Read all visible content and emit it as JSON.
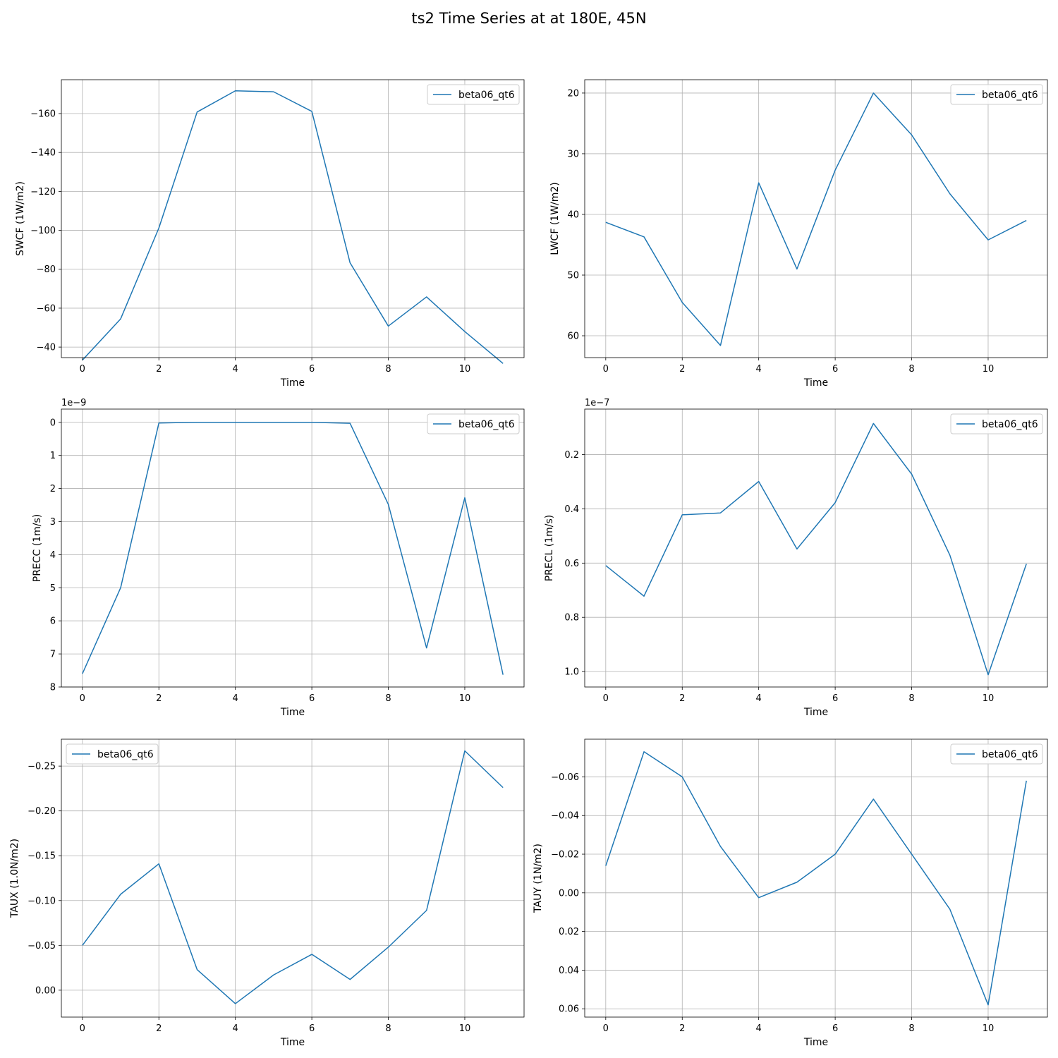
{
  "figure": {
    "title": "ts2 Time Series at at 180E, 45N"
  },
  "colors": {
    "line": "#1f77b4",
    "grid": "#b0b0b0",
    "axes": "#000000"
  },
  "chart_data": [
    {
      "type": "line",
      "ylabel": "SWCF (1W/m2)",
      "xlabel": "Time",
      "y_inverted": true,
      "offset_text": "",
      "legend": "top-right",
      "xlim": [
        -0.55,
        11.55
      ],
      "ylim": [
        -34.6,
        -177.4
      ],
      "xticks": [
        0,
        2,
        4,
        6,
        8,
        10
      ],
      "xtick_labels": [
        "0",
        "2",
        "4",
        "6",
        "8",
        "10"
      ],
      "yticks": [
        -40,
        -60,
        -80,
        -100,
        -120,
        -140,
        -160
      ],
      "ytick_labels": [
        "−40",
        "−60",
        "−80",
        "−100",
        "−120",
        "−140",
        "−160"
      ],
      "grid": true,
      "series": [
        {
          "name": "beta06_qt6",
          "x": [
            0,
            1,
            2,
            3,
            4,
            5,
            6,
            7,
            8,
            9,
            10,
            11
          ],
          "values": [
            -33.3,
            -54.5,
            -101.2,
            -160.8,
            -171.7,
            -171.2,
            -161.1,
            -83.3,
            -50.8,
            -65.8,
            -48.0,
            -31.6
          ]
        }
      ]
    },
    {
      "type": "line",
      "ylabel": "LWCF (1W/m2)",
      "xlabel": "Time",
      "y_inverted": true,
      "offset_text": "",
      "legend": "top-right",
      "xlim": [
        -0.55,
        11.55
      ],
      "ylim": [
        63.6,
        17.8
      ],
      "xticks": [
        0,
        2,
        4,
        6,
        8,
        10
      ],
      "xtick_labels": [
        "0",
        "2",
        "4",
        "6",
        "8",
        "10"
      ],
      "yticks": [
        20,
        30,
        40,
        50,
        60
      ],
      "ytick_labels": [
        "20",
        "30",
        "40",
        "50",
        "60"
      ],
      "grid": true,
      "series": [
        {
          "name": "beta06_qt6",
          "x": [
            0,
            1,
            2,
            3,
            4,
            5,
            6,
            7,
            8,
            9,
            10,
            11
          ],
          "values": [
            41.3,
            43.7,
            54.5,
            61.6,
            34.8,
            49.0,
            32.7,
            20.0,
            26.9,
            36.6,
            44.2,
            41.0
          ]
        }
      ]
    },
    {
      "type": "line",
      "ylabel": "PRECC (1m/s)",
      "xlabel": "Time",
      "y_inverted": true,
      "offset_text": "1e−9",
      "legend": "top-right",
      "xlim": [
        -0.55,
        11.55
      ],
      "ylim": [
        8.0,
        -0.4
      ],
      "xticks": [
        0,
        2,
        4,
        6,
        8,
        10
      ],
      "xtick_labels": [
        "0",
        "2",
        "4",
        "6",
        "8",
        "10"
      ],
      "yticks": [
        0,
        1,
        2,
        3,
        4,
        5,
        6,
        7,
        8
      ],
      "ytick_labels": [
        "0",
        "1",
        "2",
        "3",
        "4",
        "5",
        "6",
        "7",
        "8"
      ],
      "grid": true,
      "series": [
        {
          "name": "beta06_qt6",
          "x": [
            0,
            1,
            2,
            3,
            4,
            5,
            6,
            7,
            8,
            9,
            10,
            11
          ],
          "values": [
            7.6,
            5.0,
            0.02,
            0.0,
            0.0,
            0.0,
            0.0,
            0.03,
            2.48,
            6.82,
            2.28,
            7.63
          ]
        }
      ]
    },
    {
      "type": "line",
      "ylabel": "PRECL (1m/s)",
      "xlabel": "Time",
      "y_inverted": true,
      "offset_text": "1e−7",
      "legend": "top-right",
      "xlim": [
        -0.55,
        11.55
      ],
      "ylim": [
        1.057,
        0.032
      ],
      "xticks": [
        0,
        2,
        4,
        6,
        8,
        10
      ],
      "xtick_labels": [
        "0",
        "2",
        "4",
        "6",
        "8",
        "10"
      ],
      "yticks": [
        0.2,
        0.4,
        0.6,
        0.8,
        1.0
      ],
      "ytick_labels": [
        "0.2",
        "0.4",
        "0.6",
        "0.8",
        "1.0"
      ],
      "grid": true,
      "series": [
        {
          "name": "beta06_qt6",
          "x": [
            0,
            1,
            2,
            3,
            4,
            5,
            6,
            7,
            8,
            9,
            10,
            11
          ],
          "values": [
            0.609,
            0.722,
            0.422,
            0.415,
            0.299,
            0.548,
            0.377,
            0.085,
            0.272,
            0.571,
            1.012,
            0.603
          ]
        }
      ]
    },
    {
      "type": "line",
      "ylabel": "TAUX (1.0N/m2)",
      "xlabel": "Time",
      "y_inverted": true,
      "offset_text": "",
      "legend": "top-left",
      "xlim": [
        -0.55,
        11.55
      ],
      "ylim": [
        0.03,
        -0.28
      ],
      "xticks": [
        0,
        2,
        4,
        6,
        8,
        10
      ],
      "xtick_labels": [
        "0",
        "2",
        "4",
        "6",
        "8",
        "10"
      ],
      "yticks": [
        0.0,
        -0.05,
        -0.1,
        -0.15,
        -0.2,
        -0.25
      ],
      "ytick_labels": [
        "0.00",
        "−0.05",
        "−0.10",
        "−0.15",
        "−0.20",
        "−0.25"
      ],
      "grid": true,
      "series": [
        {
          "name": "beta06_qt6",
          "x": [
            0,
            1,
            2,
            3,
            4,
            5,
            6,
            7,
            8,
            9,
            10,
            11
          ],
          "values": [
            -0.05,
            -0.107,
            -0.141,
            -0.023,
            0.015,
            -0.017,
            -0.04,
            -0.012,
            -0.048,
            -0.089,
            -0.267,
            -0.226
          ]
        }
      ]
    },
    {
      "type": "line",
      "ylabel": "TAUY (1N/m2)",
      "xlabel": "Time",
      "y_inverted": true,
      "offset_text": "",
      "legend": "top-right",
      "xlim": [
        -0.55,
        11.55
      ],
      "ylim": [
        0.0643,
        -0.0795
      ],
      "xticks": [
        0,
        2,
        4,
        6,
        8,
        10
      ],
      "xtick_labels": [
        "0",
        "2",
        "4",
        "6",
        "8",
        "10"
      ],
      "yticks": [
        0.06,
        0.04,
        0.02,
        0.0,
        -0.02,
        -0.04,
        -0.06
      ],
      "ytick_labels": [
        "0.06",
        "0.04",
        "0.02",
        "0.00",
        "−0.02",
        "−0.04",
        "−0.06"
      ],
      "grid": true,
      "series": [
        {
          "name": "beta06_qt6",
          "x": [
            0,
            1,
            2,
            3,
            4,
            5,
            6,
            7,
            8,
            9,
            10,
            11
          ],
          "values": [
            -0.014,
            -0.073,
            -0.06,
            -0.024,
            0.0025,
            -0.0055,
            -0.02,
            -0.0485,
            -0.02,
            0.0085,
            0.058,
            -0.058
          ]
        }
      ]
    }
  ]
}
